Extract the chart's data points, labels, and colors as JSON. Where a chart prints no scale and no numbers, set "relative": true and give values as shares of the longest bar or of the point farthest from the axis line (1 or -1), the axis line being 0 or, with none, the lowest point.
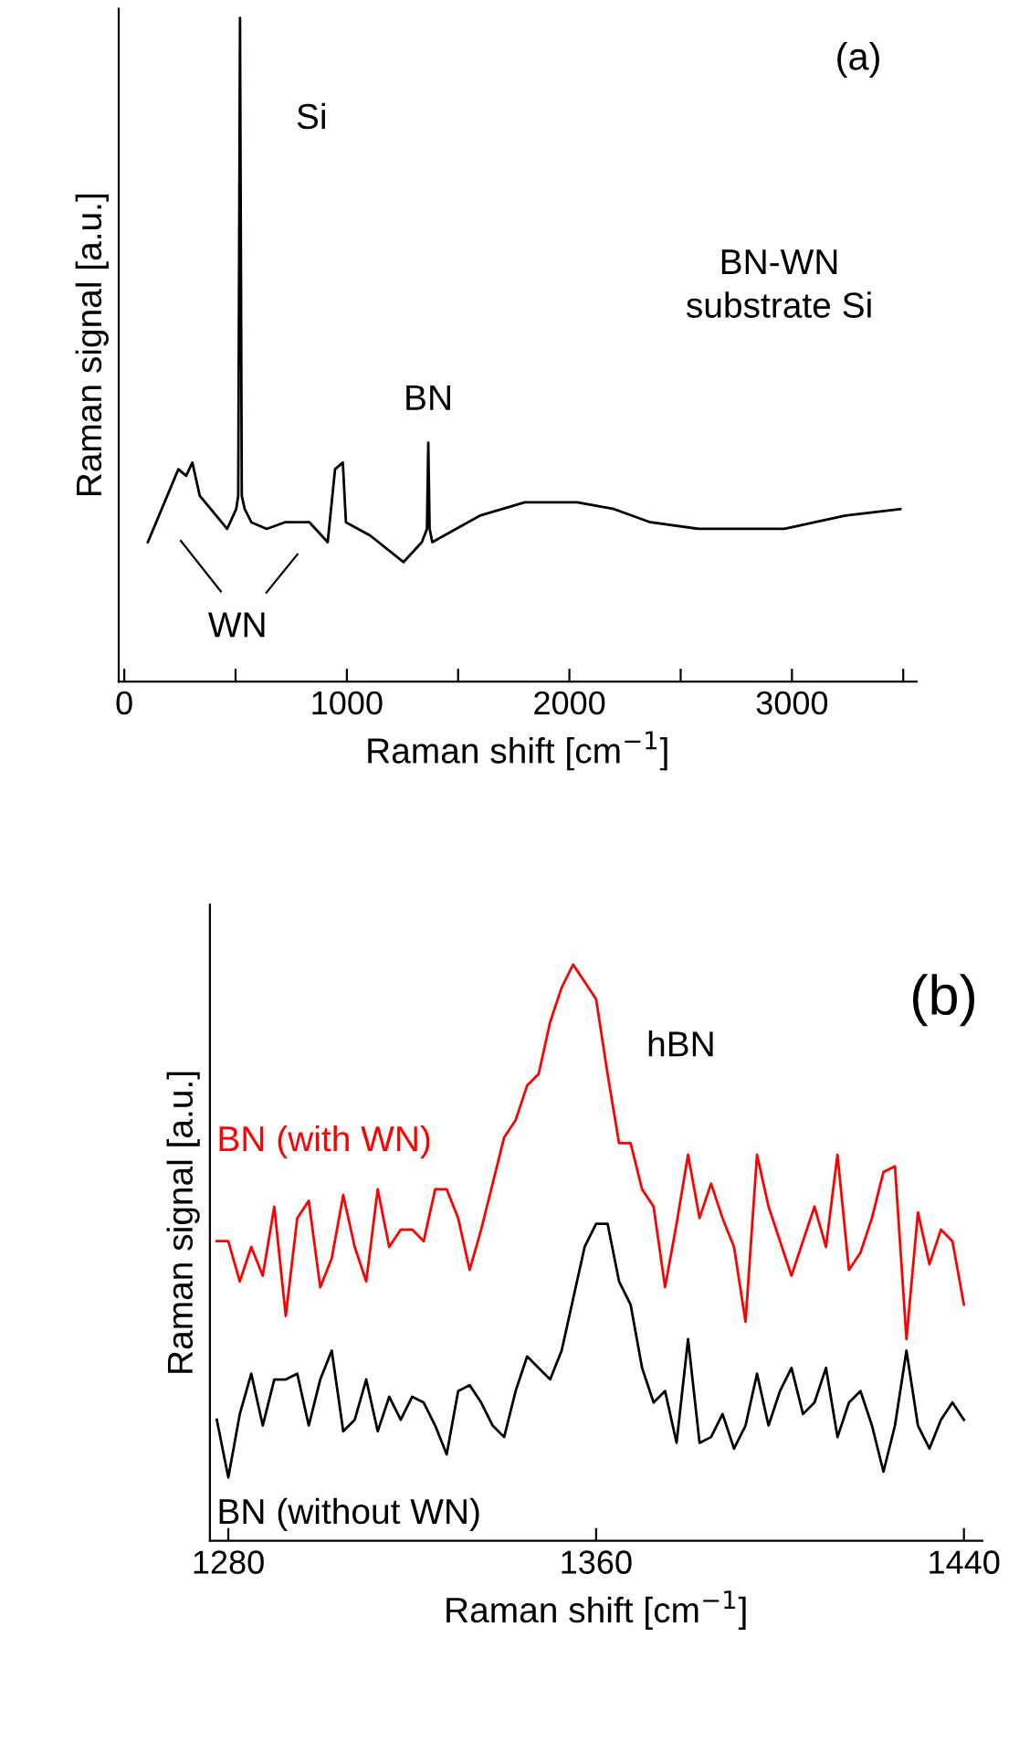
{
  "chart_data": [
    {
      "type": "line",
      "relative": true,
      "xlabel": "Raman shift [cm$^{−1}$]",
      "ylabel": "Raman signal [a.u.]",
      "xlim": [
        -25,
        3560
      ],
      "xticks": [
        0,
        {
          "value": 500,
          "label": null
        },
        1000,
        {
          "value": 1500,
          "label": null
        },
        2000,
        {
          "value": 2500,
          "label": null
        },
        3000,
        {
          "value": 3500,
          "label": null
        }
      ],
      "grid": false,
      "legend": false,
      "annotations": [
        {
          "text": "Si",
          "x": 520,
          "y": 1.0
        },
        {
          "text": "BN",
          "x": 1366,
          "y": 0.36
        },
        "WN",
        "(a)",
        "BN-WN\nsubstrate Si"
      ],
      "series": [
        {
          "color": "#000000",
          "x": [
            106,
            243,
            278,
            306,
            339,
            462,
            503,
            512,
            520,
            528,
            541,
            571,
            640,
            722,
            832,
            914,
            947,
            982,
            996,
            1105,
            1255,
            1337,
            1360,
            1366,
            1372,
            1384,
            1598,
            1800,
            2035,
            2200,
            2364,
            2583,
            2966,
            3240,
            3487
          ],
          "values": [
            0.21,
            0.32,
            0.31,
            0.33,
            0.28,
            0.23,
            0.26,
            0.28,
            1.0,
            0.28,
            0.26,
            0.24,
            0.23,
            0.24,
            0.24,
            0.21,
            0.32,
            0.33,
            0.24,
            0.22,
            0.18,
            0.21,
            0.23,
            0.36,
            0.23,
            0.21,
            0.25,
            0.27,
            0.27,
            0.26,
            0.24,
            0.23,
            0.23,
            0.25,
            0.26
          ]
        }
      ]
    },
    {
      "type": "line",
      "relative": true,
      "xlabel": "Raman shift [cm$^{−1}$]",
      "ylabel": "Raman signal [a.u.]",
      "xlim": [
        1276,
        1444
      ],
      "xticks": [
        1280,
        1360,
        1440
      ],
      "grid": false,
      "legend": false,
      "annotations": [
        "hBN",
        "(b)"
      ],
      "x": [
        1277.5,
        1280,
        1282.5,
        1285,
        1287.5,
        1290,
        1292.5,
        1295,
        1297.5,
        1300,
        1302.5,
        1305,
        1307.5,
        1310,
        1312.5,
        1315,
        1317.5,
        1320,
        1322.5,
        1325,
        1327.5,
        1330,
        1332.5,
        1335,
        1337.5,
        1340,
        1342.5,
        1345,
        1347.5,
        1350,
        1352.5,
        1355,
        1357.5,
        1360,
        1362.5,
        1365,
        1367.5,
        1370,
        1372.5,
        1375,
        1377.5,
        1380,
        1382.5,
        1385,
        1387.5,
        1390,
        1392.5,
        1395,
        1397.5,
        1400,
        1402.5,
        1405,
        1407.5,
        1410,
        1412.5,
        1415,
        1417.5,
        1420,
        1422.5,
        1425,
        1427.5,
        1430,
        1432.5,
        1435,
        1437.5,
        1440
      ],
      "series": [
        {
          "name": "BN (with WN)",
          "color": "#ff0000",
          "values": [
            0.52,
            0.52,
            0.45,
            0.51,
            0.46,
            0.58,
            0.39,
            0.56,
            0.59,
            0.44,
            0.49,
            0.6,
            0.51,
            0.45,
            0.61,
            0.51,
            0.54,
            0.54,
            0.52,
            0.61,
            0.61,
            0.56,
            0.47,
            0.54,
            0.62,
            0.7,
            0.73,
            0.79,
            0.81,
            0.9,
            0.96,
            1.0,
            0.97,
            0.94,
            0.81,
            0.69,
            0.69,
            0.61,
            0.58,
            0.44,
            0.55,
            0.67,
            0.56,
            0.62,
            0.56,
            0.51,
            0.38,
            0.67,
            0.58,
            0.52,
            0.46,
            0.52,
            0.58,
            0.51,
            0.67,
            0.47,
            0.5,
            0.56,
            0.64,
            0.65,
            0.35,
            0.57,
            0.48,
            0.54,
            0.52,
            0.41
          ]
        },
        {
          "name": "BN (without WN)",
          "color": "#000000",
          "values": [
            0.21,
            0.11,
            0.22,
            0.29,
            0.2,
            0.28,
            0.28,
            0.29,
            0.2,
            0.28,
            0.33,
            0.19,
            0.21,
            0.28,
            0.19,
            0.25,
            0.21,
            0.25,
            0.24,
            0.2,
            0.15,
            0.26,
            0.27,
            0.24,
            0.2,
            0.18,
            0.26,
            0.32,
            0.3,
            0.28,
            0.33,
            0.42,
            0.51,
            0.55,
            0.55,
            0.45,
            0.41,
            0.3,
            0.24,
            0.26,
            0.17,
            0.35,
            0.17,
            0.18,
            0.22,
            0.16,
            0.2,
            0.29,
            0.2,
            0.26,
            0.3,
            0.22,
            0.24,
            0.3,
            0.18,
            0.24,
            0.26,
            0.2,
            0.12,
            0.2,
            0.33,
            0.2,
            0.16,
            0.21,
            0.24,
            0.21
          ]
        }
      ]
    }
  ]
}
